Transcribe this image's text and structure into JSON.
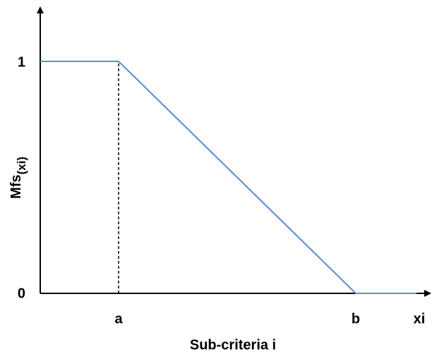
{
  "chart_data": {
    "type": "line",
    "xlabel": "Sub-criteria i",
    "ylabel": {
      "main": "Mfs",
      "subscript": "(xi)"
    },
    "x_axis_end_label": "xi",
    "x_tick_labels": [
      "a",
      "b"
    ],
    "y_tick_labels": [
      "0",
      "1"
    ],
    "x": [
      "start",
      "a",
      "b",
      "end"
    ],
    "series": [
      {
        "values": [
          1,
          1,
          0,
          0
        ],
        "color": "#5b8bd0"
      }
    ],
    "guide_line": {
      "x": "a",
      "from": 0,
      "to": 1,
      "style": "dashed"
    },
    "axis_color": "#000000",
    "grid": false,
    "legend": "none"
  }
}
